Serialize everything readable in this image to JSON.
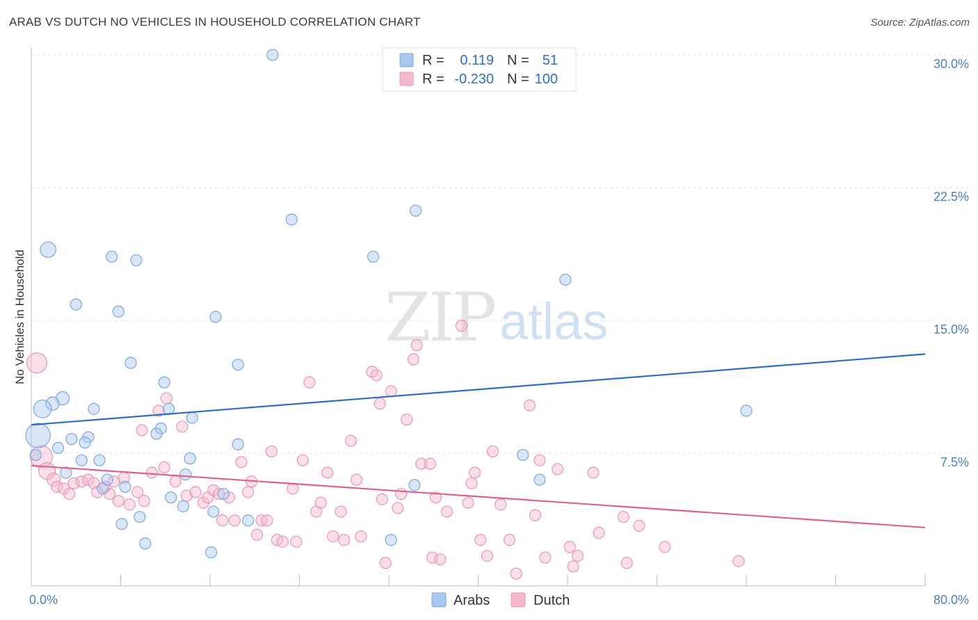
{
  "header": {
    "title": "ARAB VS DUTCH NO VEHICLES IN HOUSEHOLD CORRELATION CHART",
    "source": "Source: ZipAtlas.com"
  },
  "watermark": {
    "part1": "ZIP",
    "part2": "atlas"
  },
  "legend_top": [
    {
      "r_label": "R =",
      "r_value": "0.119",
      "n_label": "N =",
      "n_value": "51"
    },
    {
      "r_label": "R =",
      "r_value": "-0.230",
      "n_label": "N =",
      "n_value": "100"
    }
  ],
  "legend_bottom": [
    {
      "label": "Arabs"
    },
    {
      "label": "Dutch"
    }
  ],
  "colors": {
    "arabs_fill": "#a9c8f0",
    "arabs_stroke": "#7aa6dc",
    "arabs_line": "#2a6fcc",
    "dutch_fill": "#f7b8cb",
    "dutch_stroke": "#e896b0",
    "dutch_line": "#e0608a",
    "value_blue": "#2a6fcc"
  },
  "chart_data": {
    "type": "scatter",
    "title": "ARAB VS DUTCH NO VEHICLES IN HOUSEHOLD CORRELATION CHART",
    "xlabel": "",
    "ylabel": "No Vehicles in Household",
    "xlim": [
      0,
      80
    ],
    "ylim": [
      0,
      30
    ],
    "x_tick_labels": [
      "0.0%",
      "80.0%"
    ],
    "y_ticks": [
      7.5,
      15.0,
      22.5,
      30.0
    ],
    "y_tick_labels": [
      "7.5%",
      "15.0%",
      "22.5%",
      "30.0%"
    ],
    "grid": true,
    "legend_position": "top-center",
    "series": [
      {
        "name": "Arabs",
        "r": 0.119,
        "n": 51,
        "trend": {
          "x": [
            0,
            80
          ],
          "y": [
            9.1,
            13.1
          ]
        },
        "points": [
          [
            21.6,
            30.0,
            1
          ],
          [
            23.3,
            20.7,
            1
          ],
          [
            34.4,
            21.2,
            1
          ],
          [
            1.5,
            19.0,
            1.4
          ],
          [
            7.2,
            18.6,
            1
          ],
          [
            9.4,
            18.4,
            1
          ],
          [
            30.6,
            18.6,
            1
          ],
          [
            47.8,
            17.3,
            1
          ],
          [
            4.0,
            15.9,
            1
          ],
          [
            7.8,
            15.5,
            1
          ],
          [
            16.5,
            15.2,
            1
          ],
          [
            8.9,
            12.6,
            1
          ],
          [
            18.5,
            12.5,
            1
          ],
          [
            11.9,
            11.5,
            1
          ],
          [
            2.8,
            10.6,
            1.2
          ],
          [
            1.9,
            10.3,
            1.2
          ],
          [
            1.0,
            10.0,
            1.6
          ],
          [
            5.6,
            10.0,
            1
          ],
          [
            12.3,
            10.0,
            1
          ],
          [
            14.4,
            9.5,
            1
          ],
          [
            11.6,
            8.9,
            1
          ],
          [
            11.2,
            8.6,
            1
          ],
          [
            0.6,
            8.5,
            2.2
          ],
          [
            3.6,
            8.3,
            1
          ],
          [
            5.1,
            8.4,
            1
          ],
          [
            4.8,
            8.1,
            1
          ],
          [
            18.5,
            8.0,
            1
          ],
          [
            2.4,
            7.8,
            1
          ],
          [
            44.0,
            7.4,
            1
          ],
          [
            4.5,
            7.1,
            1
          ],
          [
            6.1,
            7.1,
            1
          ],
          [
            14.2,
            7.2,
            1
          ],
          [
            0.4,
            7.4,
            1
          ],
          [
            3.1,
            6.4,
            1
          ],
          [
            13.8,
            6.3,
            1
          ],
          [
            6.8,
            6.0,
            1
          ],
          [
            45.5,
            6.0,
            1
          ],
          [
            34.3,
            5.7,
            1
          ],
          [
            8.4,
            5.6,
            1
          ],
          [
            6.4,
            5.5,
            1
          ],
          [
            17.2,
            5.2,
            1
          ],
          [
            12.5,
            5.0,
            1
          ],
          [
            13.6,
            4.5,
            1
          ],
          [
            16.3,
            4.2,
            1
          ],
          [
            9.7,
            3.9,
            1
          ],
          [
            19.4,
            3.7,
            1
          ],
          [
            8.1,
            3.5,
            1
          ],
          [
            32.2,
            2.6,
            1
          ],
          [
            10.2,
            2.4,
            1
          ],
          [
            16.1,
            1.9,
            1
          ],
          [
            64.0,
            9.9,
            1
          ]
        ]
      },
      {
        "name": "Dutch",
        "r": -0.23,
        "n": 100,
        "trend": {
          "x": [
            0,
            80
          ],
          "y": [
            6.8,
            3.3
          ]
        },
        "points": [
          [
            0.5,
            12.6,
            1.8
          ],
          [
            0.9,
            7.3,
            2.0
          ],
          [
            1.4,
            6.5,
            1.5
          ],
          [
            2.0,
            6.0,
            1.2
          ],
          [
            2.3,
            5.6,
            1
          ],
          [
            2.9,
            5.5,
            1
          ],
          [
            3.4,
            5.2,
            1
          ],
          [
            3.8,
            5.8,
            1
          ],
          [
            4.5,
            5.9,
            1
          ],
          [
            5.1,
            6.0,
            1
          ],
          [
            5.6,
            5.8,
            1
          ],
          [
            5.9,
            5.3,
            1
          ],
          [
            6.6,
            5.6,
            1
          ],
          [
            7.0,
            5.2,
            1
          ],
          [
            7.4,
            5.9,
            1
          ],
          [
            7.8,
            4.8,
            1
          ],
          [
            8.3,
            6.1,
            1
          ],
          [
            8.8,
            4.6,
            1
          ],
          [
            9.5,
            5.3,
            1
          ],
          [
            10.1,
            4.8,
            1
          ],
          [
            9.9,
            8.8,
            1
          ],
          [
            10.8,
            6.4,
            1
          ],
          [
            11.4,
            9.9,
            1
          ],
          [
            11.9,
            6.7,
            1
          ],
          [
            12.1,
            10.6,
            1
          ],
          [
            12.9,
            5.9,
            1
          ],
          [
            13.5,
            9.0,
            1
          ],
          [
            13.9,
            5.1,
            1
          ],
          [
            14.7,
            5.3,
            1
          ],
          [
            15.4,
            4.7,
            1
          ],
          [
            15.8,
            5.0,
            1
          ],
          [
            16.3,
            5.4,
            1
          ],
          [
            16.8,
            5.2,
            1
          ],
          [
            17.1,
            3.7,
            1
          ],
          [
            17.7,
            5.0,
            1
          ],
          [
            18.2,
            3.7,
            1
          ],
          [
            18.8,
            7.0,
            1
          ],
          [
            19.4,
            5.3,
            1
          ],
          [
            19.7,
            5.9,
            1
          ],
          [
            20.2,
            2.9,
            1
          ],
          [
            20.6,
            3.7,
            1
          ],
          [
            21.1,
            3.7,
            1
          ],
          [
            21.5,
            7.6,
            1
          ],
          [
            22.0,
            2.6,
            1
          ],
          [
            22.5,
            2.5,
            1
          ],
          [
            23.4,
            5.5,
            1
          ],
          [
            23.7,
            2.5,
            1
          ],
          [
            24.3,
            7.1,
            1
          ],
          [
            24.9,
            11.5,
            1
          ],
          [
            25.5,
            4.2,
            1
          ],
          [
            25.9,
            4.7,
            1
          ],
          [
            26.5,
            6.4,
            1
          ],
          [
            27.0,
            2.8,
            1
          ],
          [
            27.7,
            4.2,
            1
          ],
          [
            28.0,
            2.6,
            1
          ],
          [
            28.6,
            8.2,
            1
          ],
          [
            29.1,
            6.0,
            1
          ],
          [
            29.5,
            2.8,
            1
          ],
          [
            30.5,
            12.1,
            1
          ],
          [
            30.9,
            11.9,
            1
          ],
          [
            31.2,
            10.3,
            1
          ],
          [
            32.2,
            11.0,
            1
          ],
          [
            31.4,
            4.9,
            1
          ],
          [
            31.7,
            1.3,
            1
          ],
          [
            32.8,
            4.4,
            1
          ],
          [
            33.1,
            5.2,
            1
          ],
          [
            33.6,
            9.4,
            1
          ],
          [
            34.2,
            12.8,
            1
          ],
          [
            34.5,
            13.6,
            1
          ],
          [
            34.9,
            6.9,
            1
          ],
          [
            35.7,
            6.9,
            1
          ],
          [
            35.9,
            1.6,
            1
          ],
          [
            36.2,
            5.0,
            1
          ],
          [
            36.6,
            1.5,
            1
          ],
          [
            37.2,
            4.2,
            1
          ],
          [
            38.5,
            14.7,
            1
          ],
          [
            39.1,
            4.7,
            1
          ],
          [
            39.4,
            5.8,
            1
          ],
          [
            39.7,
            6.4,
            1
          ],
          [
            40.2,
            2.6,
            1
          ],
          [
            40.8,
            1.7,
            1
          ],
          [
            41.3,
            7.6,
            1
          ],
          [
            42.0,
            4.6,
            1
          ],
          [
            42.8,
            2.6,
            1
          ],
          [
            43.4,
            0.7,
            1
          ],
          [
            44.6,
            10.2,
            1
          ],
          [
            45.1,
            4.0,
            1
          ],
          [
            45.5,
            7.1,
            1
          ],
          [
            46.0,
            1.6,
            1
          ],
          [
            47.1,
            6.6,
            1
          ],
          [
            48.2,
            2.2,
            1
          ],
          [
            48.5,
            1.1,
            1
          ],
          [
            48.9,
            1.7,
            1
          ],
          [
            50.8,
            3.0,
            1
          ],
          [
            53.0,
            3.9,
            1
          ],
          [
            53.3,
            1.3,
            1
          ],
          [
            54.4,
            3.4,
            1
          ],
          [
            56.7,
            2.2,
            1
          ],
          [
            63.3,
            1.4,
            1
          ],
          [
            50.3,
            6.4,
            1
          ]
        ]
      }
    ]
  }
}
